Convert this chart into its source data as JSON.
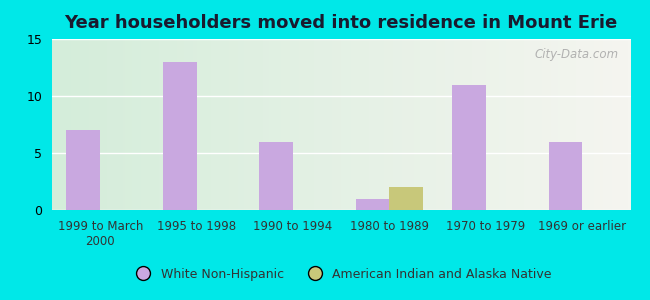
{
  "title": "Year householders moved into residence in Mount Erie",
  "categories": [
    "1999 to March\n2000",
    "1995 to 1998",
    "1990 to 1994",
    "1980 to 1989",
    "1970 to 1979",
    "1969 or earlier"
  ],
  "white_non_hispanic": [
    7,
    13,
    6,
    1,
    11,
    6
  ],
  "american_indian": [
    0,
    0,
    0,
    2,
    0,
    0
  ],
  "white_color": "#c9a8e0",
  "indian_color": "#c8c87a",
  "bg_outer": "#00e8e8",
  "bg_plot_left": "#d4edda",
  "bg_plot_right": "#f5f5f0",
  "ylim": [
    0,
    15
  ],
  "yticks": [
    0,
    5,
    10,
    15
  ],
  "bar_width": 0.35,
  "legend_labels": [
    "White Non-Hispanic",
    "American Indian and Alaska Native"
  ],
  "watermark": "City-Data.com"
}
